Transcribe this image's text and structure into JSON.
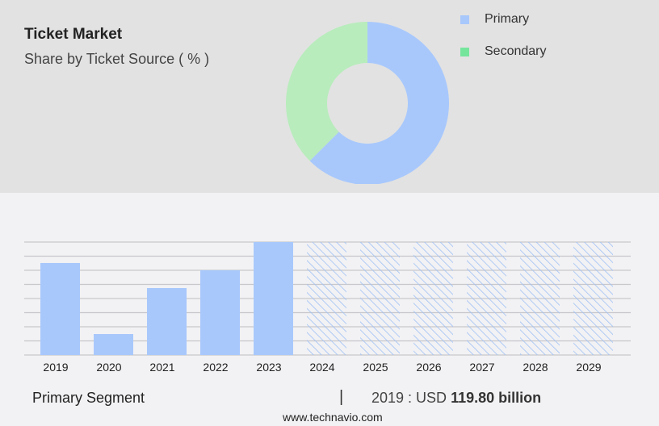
{
  "chart_data": [
    {
      "type": "pie",
      "title": "Ticket Market",
      "subtitle": "Share by Ticket Source ( % )",
      "donut": true,
      "legend_position": "top-right",
      "slices": [
        {
          "name": "Primary",
          "value": 62.5,
          "color": "#a8c8fc"
        },
        {
          "name": "Secondary",
          "value": 37.5,
          "color": "#b8ecbc"
        }
      ],
      "legend_colors": {
        "Primary": "#a8c8fc",
        "Secondary": "#76e59c"
      }
    },
    {
      "type": "bar",
      "categories": [
        "2019",
        "2020",
        "2021",
        "2022",
        "2023",
        "2024",
        "2025",
        "2026",
        "2027",
        "2028",
        "2029"
      ],
      "values": [
        119.8,
        27.3,
        87.2,
        110.4,
        147.1,
        null,
        null,
        null,
        null,
        null,
        null
      ],
      "forecast_categories": [
        "2024",
        "2025",
        "2026",
        "2027",
        "2028",
        "2029"
      ],
      "ylim": [
        0,
        147.1
      ],
      "grid": true,
      "color": "#a8c8fc"
    }
  ],
  "footer": {
    "segment": "Primary Segment",
    "separator": "|",
    "value_prefix": "2019 : USD",
    "value": "119.80 billion",
    "site": "www.technavio.com"
  }
}
